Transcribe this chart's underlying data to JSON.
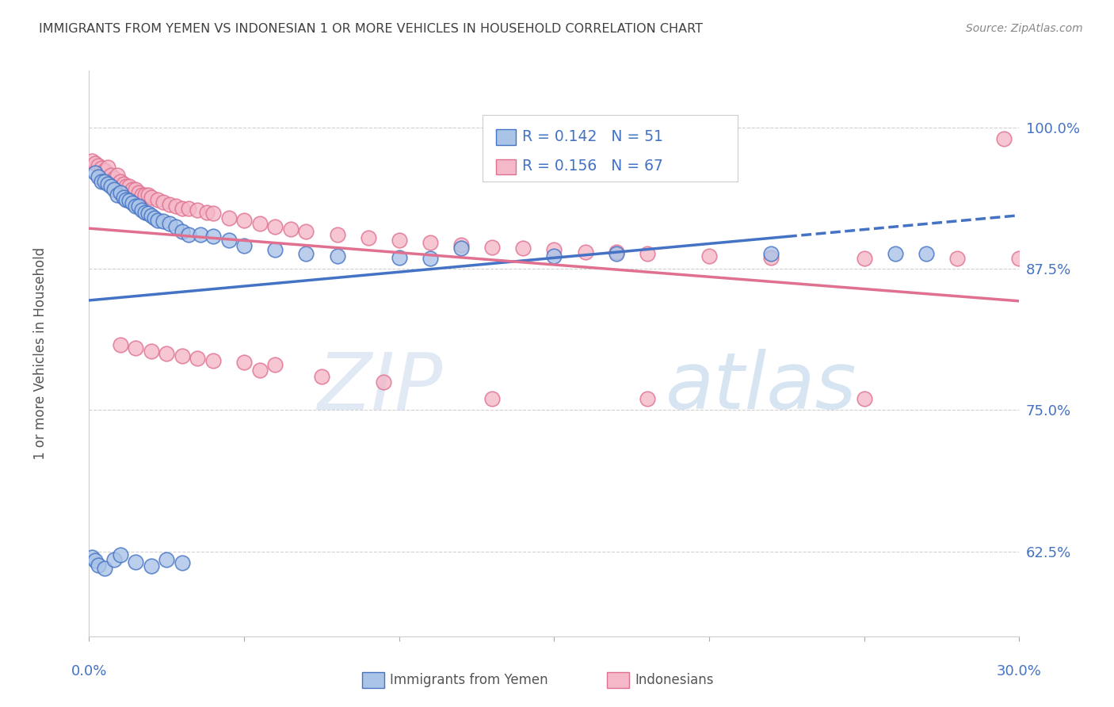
{
  "title": "IMMIGRANTS FROM YEMEN VS INDONESIAN 1 OR MORE VEHICLES IN HOUSEHOLD CORRELATION CHART",
  "source": "Source: ZipAtlas.com",
  "ylabel": "1 or more Vehicles in Household",
  "xmin": 0.0,
  "xmax": 0.3,
  "ymin": 0.55,
  "ymax": 1.05,
  "yticks": [
    0.625,
    0.75,
    0.875,
    1.0
  ],
  "ytick_labels": [
    "62.5%",
    "75.0%",
    "87.5%",
    "100.0%"
  ],
  "watermark_zip": "ZIP",
  "watermark_atlas": "atlas",
  "blue_face": "#aac4e8",
  "blue_edge": "#4472c4",
  "pink_face": "#f4b8c8",
  "pink_edge": "#e07090",
  "line_blue": "#4472c4",
  "line_pink": "#e07090",
  "axis_label_color": "#4472c4",
  "title_color": "#404040",
  "source_color": "#888888",
  "grid_color": "#d0d0d0",
  "yemen_x": [
    0.002,
    0.003,
    0.004,
    0.005,
    0.006,
    0.007,
    0.008,
    0.009,
    0.01,
    0.011,
    0.012,
    0.013,
    0.014,
    0.015,
    0.016,
    0.017,
    0.018,
    0.019,
    0.02,
    0.021,
    0.022,
    0.024,
    0.026,
    0.028,
    0.03,
    0.032,
    0.036,
    0.04,
    0.045,
    0.05,
    0.06,
    0.07,
    0.08,
    0.1,
    0.11,
    0.12,
    0.15,
    0.17,
    0.22,
    0.26,
    0.27,
    0.001,
    0.002,
    0.003,
    0.005,
    0.008,
    0.01,
    0.015,
    0.02,
    0.025,
    0.03
  ],
  "yemen_y": [
    0.96,
    0.956,
    0.952,
    0.952,
    0.95,
    0.948,
    0.945,
    0.94,
    0.942,
    0.938,
    0.936,
    0.935,
    0.933,
    0.93,
    0.93,
    0.927,
    0.925,
    0.924,
    0.922,
    0.92,
    0.918,
    0.917,
    0.915,
    0.912,
    0.908,
    0.905,
    0.905,
    0.904,
    0.9,
    0.895,
    0.892,
    0.888,
    0.886,
    0.885,
    0.884,
    0.893,
    0.886,
    0.888,
    0.888,
    0.888,
    0.888,
    0.62,
    0.617,
    0.613,
    0.61,
    0.618,
    0.622,
    0.616,
    0.612,
    0.618,
    0.615
  ],
  "indonesia_x": [
    0.001,
    0.002,
    0.003,
    0.004,
    0.005,
    0.006,
    0.007,
    0.008,
    0.009,
    0.01,
    0.011,
    0.012,
    0.013,
    0.014,
    0.015,
    0.016,
    0.017,
    0.018,
    0.019,
    0.02,
    0.022,
    0.024,
    0.026,
    0.028,
    0.03,
    0.032,
    0.035,
    0.038,
    0.04,
    0.045,
    0.05,
    0.055,
    0.06,
    0.065,
    0.07,
    0.08,
    0.09,
    0.1,
    0.11,
    0.12,
    0.13,
    0.14,
    0.15,
    0.16,
    0.17,
    0.18,
    0.2,
    0.22,
    0.25,
    0.28,
    0.3,
    0.01,
    0.015,
    0.02,
    0.025,
    0.03,
    0.035,
    0.04,
    0.05,
    0.06,
    0.13,
    0.18,
    0.25,
    0.295,
    0.095,
    0.075,
    0.055
  ],
  "indonesia_y": [
    0.97,
    0.968,
    0.966,
    0.964,
    0.962,
    0.965,
    0.958,
    0.955,
    0.958,
    0.952,
    0.95,
    0.948,
    0.948,
    0.945,
    0.945,
    0.942,
    0.94,
    0.94,
    0.94,
    0.938,
    0.936,
    0.934,
    0.932,
    0.93,
    0.928,
    0.928,
    0.927,
    0.925,
    0.924,
    0.92,
    0.918,
    0.915,
    0.912,
    0.91,
    0.908,
    0.905,
    0.902,
    0.9,
    0.898,
    0.896,
    0.894,
    0.893,
    0.892,
    0.89,
    0.89,
    0.888,
    0.886,
    0.885,
    0.884,
    0.884,
    0.884,
    0.808,
    0.805,
    0.802,
    0.8,
    0.798,
    0.796,
    0.794,
    0.792,
    0.79,
    0.76,
    0.76,
    0.76,
    0.99,
    0.775,
    0.78,
    0.785
  ]
}
